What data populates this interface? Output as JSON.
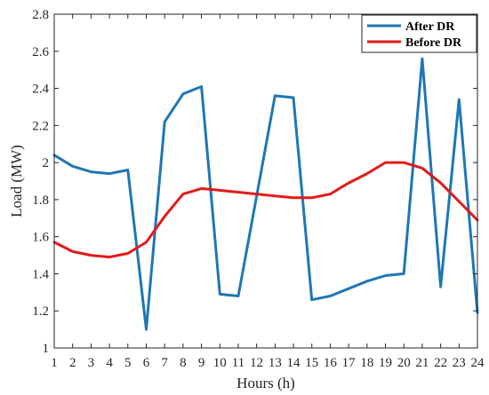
{
  "chart_data": {
    "type": "line",
    "title": "",
    "xlabel": "Hours (h)",
    "ylabel": "Load (MW)",
    "xlim": [
      1,
      24
    ],
    "ylim": [
      1,
      2.8
    ],
    "x_ticks": [
      1,
      2,
      3,
      4,
      5,
      6,
      7,
      8,
      9,
      10,
      11,
      12,
      13,
      14,
      15,
      16,
      17,
      18,
      19,
      20,
      21,
      22,
      23,
      24
    ],
    "y_ticks": [
      1,
      1.2,
      1.4,
      1.6,
      1.8,
      2,
      2.2,
      2.4,
      2.6,
      2.8
    ],
    "grid": false,
    "legend_position": "top-right",
    "x": [
      1,
      2,
      3,
      4,
      5,
      6,
      7,
      8,
      9,
      10,
      11,
      12,
      13,
      14,
      15,
      16,
      17,
      18,
      19,
      20,
      21,
      22,
      23,
      24
    ],
    "series": [
      {
        "name": "After DR",
        "color": "#1f77b4",
        "values": [
          2.04,
          1.98,
          1.95,
          1.94,
          1.96,
          1.1,
          2.22,
          2.37,
          2.41,
          1.29,
          1.28,
          1.82,
          2.36,
          2.35,
          1.26,
          1.28,
          1.32,
          1.36,
          1.39,
          1.4,
          2.56,
          1.33,
          2.34,
          1.19
        ]
      },
      {
        "name": "Before DR",
        "color": "#e31a1c",
        "values": [
          1.57,
          1.52,
          1.5,
          1.49,
          1.51,
          1.57,
          1.71,
          1.83,
          1.86,
          1.85,
          1.84,
          1.83,
          1.82,
          1.81,
          1.81,
          1.83,
          1.89,
          1.94,
          2.0,
          2.0,
          1.97,
          1.89,
          1.79,
          1.69
        ]
      }
    ]
  }
}
